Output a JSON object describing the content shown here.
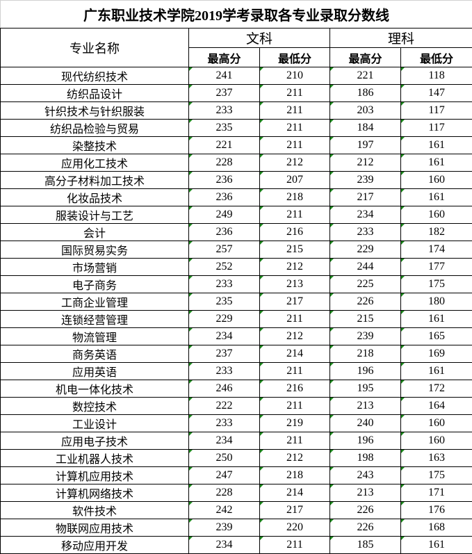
{
  "title": "广东职业技术学院2019学考录取各专业录取分数线",
  "headers": {
    "major_name": "专业名称",
    "group_arts": "文科",
    "group_science": "理科",
    "max": "最高分",
    "min": "最低分"
  },
  "colors": {
    "indicator_triangle": "#1e8a1e",
    "border": "#000000"
  },
  "rows": [
    [
      "现代纺织技术",
      "241",
      "210",
      "221",
      "118"
    ],
    [
      "纺织品设计",
      "237",
      "211",
      "186",
      "147"
    ],
    [
      "针织技术与针织服装",
      "233",
      "211",
      "203",
      "117"
    ],
    [
      "纺织品检验与贸易",
      "235",
      "211",
      "184",
      "117"
    ],
    [
      "染整技术",
      "221",
      "211",
      "197",
      "161"
    ],
    [
      "应用化工技术",
      "228",
      "212",
      "212",
      "161"
    ],
    [
      "高分子材料加工技术",
      "236",
      "207",
      "239",
      "160"
    ],
    [
      "化妆品技术",
      "236",
      "218",
      "217",
      "161"
    ],
    [
      "服装设计与工艺",
      "249",
      "211",
      "234",
      "160"
    ],
    [
      "会计",
      "236",
      "216",
      "233",
      "182"
    ],
    [
      "国际贸易实务",
      "257",
      "215",
      "229",
      "174"
    ],
    [
      "市场营销",
      "252",
      "212",
      "244",
      "177"
    ],
    [
      "电子商务",
      "233",
      "213",
      "225",
      "175"
    ],
    [
      "工商企业管理",
      "235",
      "217",
      "226",
      "180"
    ],
    [
      "连锁经营管理",
      "229",
      "211",
      "215",
      "161"
    ],
    [
      "物流管理",
      "234",
      "212",
      "239",
      "165"
    ],
    [
      "商务英语",
      "237",
      "214",
      "218",
      "169"
    ],
    [
      "应用英语",
      "233",
      "211",
      "196",
      "161"
    ],
    [
      "机电一体化技术",
      "246",
      "216",
      "195",
      "172"
    ],
    [
      "数控技术",
      "222",
      "211",
      "213",
      "164"
    ],
    [
      "工业设计",
      "233",
      "219",
      "240",
      "160"
    ],
    [
      "应用电子技术",
      "234",
      "211",
      "196",
      "160"
    ],
    [
      "工业机器人技术",
      "250",
      "212",
      "198",
      "163"
    ],
    [
      "计算机应用技术",
      "247",
      "218",
      "243",
      "175"
    ],
    [
      "计算机网络技术",
      "228",
      "214",
      "213",
      "171"
    ],
    [
      "软件技术",
      "242",
      "217",
      "226",
      "176"
    ],
    [
      "物联网应用技术",
      "239",
      "220",
      "226",
      "168"
    ],
    [
      "移动应用开发",
      "234",
      "211",
      "185",
      "161"
    ]
  ]
}
